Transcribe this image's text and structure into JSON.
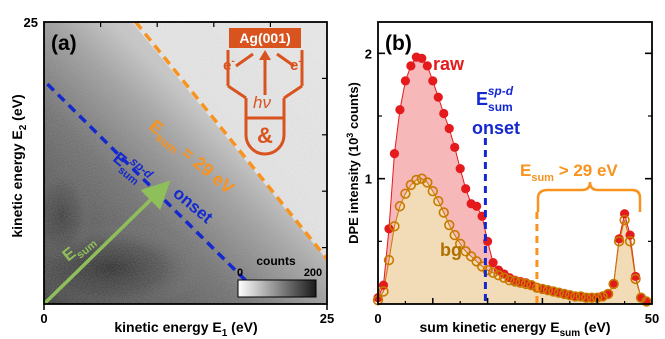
{
  "chart_data": [
    {
      "panel_label": "(a)",
      "type": "heatmap",
      "xlabel": "kinetic energy E",
      "xlabel_sub": "1",
      "xlabel_unit": " (eV)",
      "ylabel": "kinetic energy E",
      "ylabel_sub": "2",
      "ylabel_unit": " (eV)",
      "xlim": [
        0,
        25
      ],
      "ylim": [
        0,
        25
      ],
      "x_ticks": [
        "0",
        "25"
      ],
      "y_ticks": [
        "25"
      ],
      "colorbar": {
        "label": "counts",
        "min_label": "0",
        "max_label": "200",
        "range": [
          0,
          200
        ]
      },
      "esum29_label": {
        "main": "E",
        "sub": "sum",
        "rest": " = 29 eV"
      },
      "onset_label": {
        "main": "E",
        "sub": "sum",
        "sup": "sp-d",
        "rest": "onset"
      },
      "arrow_label": {
        "main": "E",
        "sub": "sum"
      },
      "esum29_line": {
        "x": [
          8.1,
          25
        ],
        "y": [
          25,
          4
        ]
      },
      "onset_line": {
        "x": [
          0.3,
          18
        ],
        "y": [
          19.5,
          1.9
        ]
      },
      "esum_arrow": {
        "from": [
          0,
          0
        ],
        "to": [
          10.5,
          10.3
        ]
      },
      "colors": {
        "esum29": "#f7931e",
        "onset": "#1428d0",
        "arrow": "#8fbf5a"
      }
    },
    {
      "panel_label": "(b)",
      "type": "scatter",
      "xlabel": "sum kinetic energy E",
      "xlabel_sub": "sum",
      "xlabel_unit": " (eV)",
      "ylabel": "DPE intensity (10",
      "ylabel_sup": "3",
      "ylabel_unit": " counts)",
      "xlim": [
        0,
        50
      ],
      "ylim": [
        0,
        2.25
      ],
      "x_ticks": [
        "0",
        "50"
      ],
      "y_ticks": [
        "1",
        "2"
      ],
      "onset_label": {
        "main": "E",
        "sub": "sum",
        "sup": "sp-d",
        "rest": "onset"
      },
      "onset_x": 19.6,
      "esum29_x": 29,
      "range_label": {
        "main": "E",
        "sub": "sum",
        "rest": " > 29 eV"
      },
      "series": [
        {
          "name": "raw",
          "color": "#e41a1c",
          "x": [
            0,
            1,
            2,
            3,
            4,
            5,
            6,
            7,
            8,
            9,
            10,
            11,
            12,
            13,
            14,
            15,
            16,
            17,
            18,
            19,
            20,
            21,
            22,
            23,
            24,
            25,
            26,
            27,
            28,
            29,
            30,
            31,
            32,
            33,
            34,
            35,
            36,
            37,
            38,
            39,
            40,
            41,
            42,
            43,
            44,
            45,
            46,
            47,
            48,
            49
          ],
          "y": [
            0.05,
            0.15,
            0.6,
            1.2,
            1.55,
            1.78,
            1.9,
            1.97,
            1.96,
            1.9,
            1.78,
            1.65,
            1.52,
            1.4,
            1.25,
            1.08,
            0.92,
            0.8,
            0.78,
            0.7,
            0.5,
            0.33,
            0.27,
            0.24,
            0.21,
            0.19,
            0.18,
            0.17,
            0.15,
            0.13,
            0.12,
            0.11,
            0.1,
            0.09,
            0.08,
            0.07,
            0.06,
            0.06,
            0.05,
            0.05,
            0.05,
            0.06,
            0.08,
            0.16,
            0.52,
            0.72,
            0.55,
            0.22,
            0.05,
            0.02
          ]
        },
        {
          "name": "bg",
          "color": "#c87a00",
          "x": [
            0,
            1,
            2,
            3,
            4,
            5,
            6,
            7,
            8,
            9,
            10,
            11,
            12,
            13,
            14,
            15,
            16,
            17,
            18,
            19,
            20,
            21,
            22,
            23,
            24,
            25,
            26,
            27,
            28,
            29,
            30,
            31,
            32,
            33,
            34,
            35,
            36,
            37,
            38,
            39,
            40,
            41,
            42,
            43,
            44,
            45,
            46,
            47,
            48,
            49
          ],
          "y": [
            0.03,
            0.1,
            0.35,
            0.62,
            0.78,
            0.88,
            0.95,
            0.99,
            1.0,
            0.97,
            0.9,
            0.82,
            0.73,
            0.63,
            0.55,
            0.48,
            0.42,
            0.38,
            0.34,
            0.3,
            0.27,
            0.25,
            0.23,
            0.21,
            0.19,
            0.18,
            0.17,
            0.16,
            0.15,
            0.13,
            0.12,
            0.11,
            0.1,
            0.09,
            0.08,
            0.07,
            0.06,
            0.06,
            0.05,
            0.05,
            0.05,
            0.06,
            0.08,
            0.16,
            0.5,
            0.67,
            0.5,
            0.2,
            0.05,
            0.02
          ]
        }
      ],
      "colors": {
        "raw_fill": "#f6b8b8",
        "bg_fill": "#f2dcb8",
        "onset": "#1428d0",
        "esum29": "#f7931e"
      }
    }
  ],
  "diagram": {
    "sample_label": "Ag(001)",
    "electron_label": "e",
    "electron_sup": "-",
    "photon_label": "hν",
    "coincidence_label": "&",
    "color": "#d9531e"
  }
}
